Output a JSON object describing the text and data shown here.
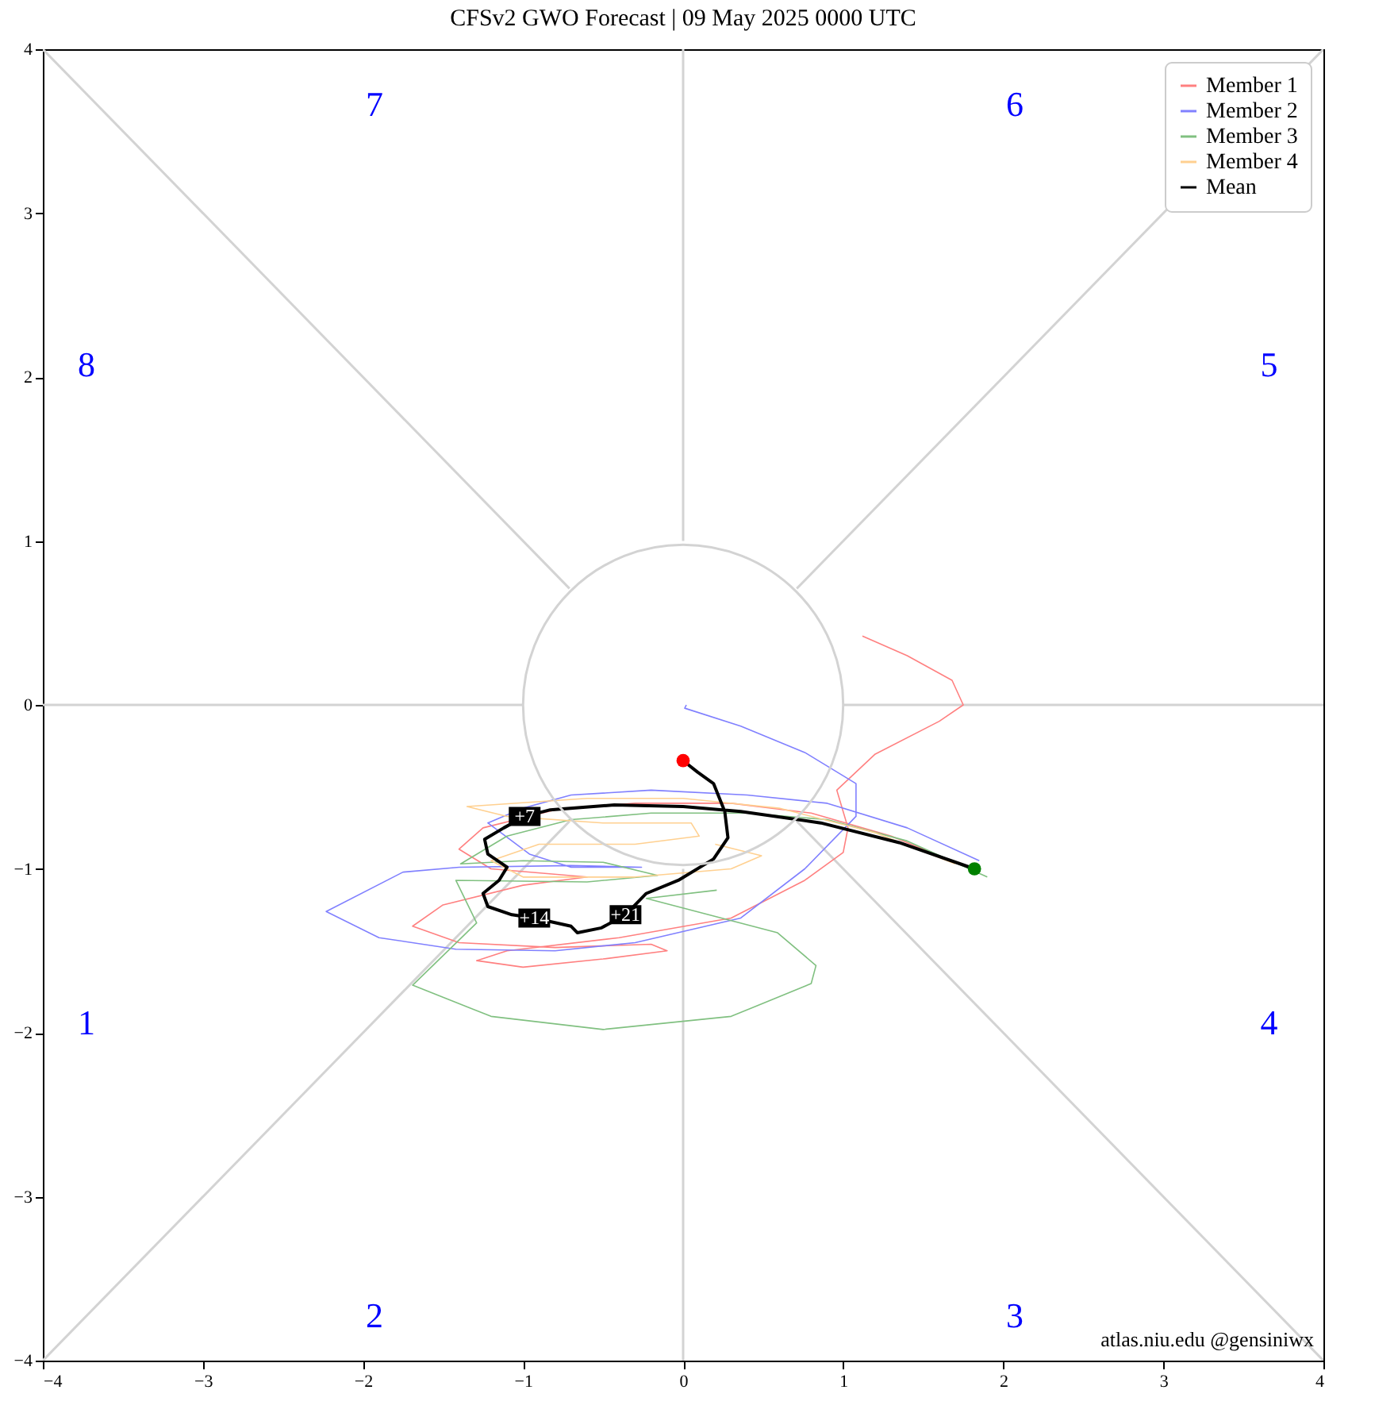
{
  "chart_data": {
    "type": "line",
    "title": "CFSv2 GWO Forecast  |  09  May  2025 0000 UTC",
    "xlim": [
      -4,
      4
    ],
    "ylim": [
      -4,
      4
    ],
    "xticks": [
      {
        "value": -4,
        "label": "−4"
      },
      {
        "value": -3,
        "label": "−3"
      },
      {
        "value": -2,
        "label": "−2"
      },
      {
        "value": -1,
        "label": "−1"
      },
      0,
      1,
      2,
      3,
      4
    ],
    "yticks": [
      {
        "value": -4,
        "label": "−4"
      },
      {
        "value": -3,
        "label": "−3"
      },
      {
        "value": -2,
        "label": "−2"
      },
      {
        "value": -1,
        "label": "−1"
      },
      0,
      1,
      2,
      3,
      4
    ],
    "grid": false,
    "legend": "top right",
    "series": [
      {
        "color": "#d3d3d3",
        "x": [
          -4,
          -0.71
        ],
        "values": [
          4,
          0.71
        ]
      },
      {
        "color": "#d3d3d3",
        "x": [
          0.71,
          4
        ],
        "values": [
          -0.71,
          -4
        ]
      },
      {
        "color": "#d3d3d3",
        "x": [
          -4,
          -0.71
        ],
        "values": [
          -4,
          -0.71
        ]
      },
      {
        "color": "#d3d3d3",
        "x": [
          0.71,
          4
        ],
        "values": [
          0.71,
          4
        ]
      },
      {
        "color": "#d3d3d3",
        "x": [
          -4,
          -1
        ],
        "values": [
          0,
          0
        ]
      },
      {
        "color": "#d3d3d3",
        "x": [
          1,
          4
        ],
        "values": [
          0,
          0
        ]
      },
      {
        "color": "#d3d3d3",
        "x": [
          0,
          0
        ],
        "values": [
          -4,
          -1
        ]
      },
      {
        "color": "#d3d3d3",
        "x": [
          0,
          0
        ],
        "values": [
          1,
          4
        ]
      },
      {
        "name": "Member 1",
        "color": "#ff8080",
        "x": [
          1.8,
          1.3,
          0.8,
          0.3,
          -0.3,
          -0.8,
          -1.25,
          -1.4,
          -1.2,
          -0.6,
          -1.0,
          -1.5,
          -1.69,
          -1.4,
          -0.8,
          -0.2,
          -0.1,
          -0.5,
          -1.0,
          -1.29,
          -1.1,
          -0.4,
          0.3,
          0.76,
          1.0,
          1.03,
          0.96,
          1.2,
          1.6,
          1.75,
          1.68,
          1.4,
          1.12
        ],
        "values": [
          -1.0,
          -0.8,
          -0.66,
          -0.6,
          -0.6,
          -0.64,
          -0.75,
          -0.88,
          -1.0,
          -1.05,
          -1.1,
          -1.22,
          -1.35,
          -1.45,
          -1.48,
          -1.46,
          -1.5,
          -1.55,
          -1.6,
          -1.56,
          -1.5,
          -1.42,
          -1.3,
          -1.07,
          -0.9,
          -0.75,
          -0.52,
          -0.3,
          -0.1,
          0.0,
          0.15,
          0.3,
          0.42
        ]
      },
      {
        "name": "Member 2",
        "color": "#8080ff",
        "x": [
          1.85,
          1.4,
          0.9,
          0.4,
          -0.2,
          -0.7,
          -1.0,
          -1.22,
          -0.96,
          -0.7,
          -0.26,
          -0.7,
          -1.4,
          -1.75,
          -2.23,
          -1.9,
          -1.42,
          -0.8,
          -0.3,
          0.36,
          0.76,
          1.08,
          1.08,
          0.76,
          0.36,
          0.01,
          0.02
        ],
        "values": [
          -0.95,
          -0.75,
          -0.6,
          -0.55,
          -0.52,
          -0.55,
          -0.63,
          -0.72,
          -0.91,
          -0.99,
          -0.99,
          -0.98,
          -0.99,
          -1.02,
          -1.26,
          -1.42,
          -1.49,
          -1.5,
          -1.45,
          -1.3,
          -1.0,
          -0.68,
          -0.48,
          -0.29,
          -0.13,
          -0.02,
          0.0
        ]
      },
      {
        "name": "Member 3",
        "color": "#80c080",
        "x": [
          1.9,
          1.4,
          0.9,
          0.4,
          -0.2,
          -0.7,
          -1.1,
          -1.39,
          -1.0,
          -0.5,
          -0.16,
          -0.6,
          -1.42,
          -1.29,
          -1.69,
          -1.2,
          -0.5,
          0.3,
          0.8,
          0.83,
          0.59,
          -0.23,
          0.21
        ],
        "values": [
          -1.05,
          -0.83,
          -0.7,
          -0.66,
          -0.66,
          -0.7,
          -0.8,
          -0.97,
          -0.95,
          -0.96,
          -1.04,
          -1.08,
          -1.07,
          -1.33,
          -1.71,
          -1.9,
          -1.98,
          -1.9,
          -1.7,
          -1.59,
          -1.39,
          -1.18,
          -1.13
        ]
      },
      {
        "name": "Member 4",
        "color": "#ffd090",
        "x": [
          1.7,
          1.2,
          0.6,
          0.0,
          -0.6,
          -1.35,
          -1.1,
          -0.5,
          0.05,
          0.1,
          -0.3,
          -0.9,
          -1.2,
          -1.0,
          -0.3,
          0.3,
          0.49,
          0.2
        ],
        "values": [
          -0.97,
          -0.78,
          -0.63,
          -0.57,
          -0.57,
          -0.62,
          -0.68,
          -0.72,
          -0.72,
          -0.8,
          -0.85,
          -0.85,
          -0.95,
          -1.05,
          -1.05,
          -1.0,
          -0.92,
          -0.85
        ]
      },
      {
        "name": "Mean",
        "color": "#000000",
        "x": [
          1.82,
          1.35,
          0.86,
          0.36,
          0,
          -0.43,
          -0.83,
          -0.99,
          -1.12,
          -1.24,
          -1.22,
          -1.1,
          -1.15,
          -1.25,
          -1.22,
          -1.07,
          -0.93,
          -0.7,
          -0.66,
          -0.51,
          -0.36,
          -0.23,
          -0.03,
          0.19,
          0.28,
          0.26,
          0.19,
          0.09,
          0.0
        ],
        "values": [
          -1.0,
          -0.84,
          -0.72,
          -0.65,
          -0.62,
          -0.61,
          -0.64,
          -0.68,
          -0.75,
          -0.82,
          -0.91,
          -0.99,
          -1.07,
          -1.15,
          -1.23,
          -1.28,
          -1.3,
          -1.35,
          -1.39,
          -1.36,
          -1.28,
          -1.15,
          -1.07,
          -0.94,
          -0.81,
          -0.65,
          -0.48,
          -0.41,
          -0.34
        ]
      },
      {
        "type": "scatter",
        "color": "#ff0000",
        "x": [
          0.0
        ],
        "values": [
          -0.34
        ]
      },
      {
        "type": "scatter",
        "color": "#008000",
        "x": [
          1.82
        ],
        "values": [
          -1.0
        ]
      }
    ],
    "annotations": [
      {
        "text": "+7",
        "x": -0.99,
        "y": -0.68
      },
      {
        "text": "+14",
        "x": -0.93,
        "y": -1.3
      },
      {
        "text": "+21",
        "x": -0.36,
        "y": -1.28
      },
      "1",
      "2",
      "3",
      "4",
      "5",
      "6",
      "7",
      "8",
      "atlas.niu.edu  @gensiniwx"
    ]
  }
}
